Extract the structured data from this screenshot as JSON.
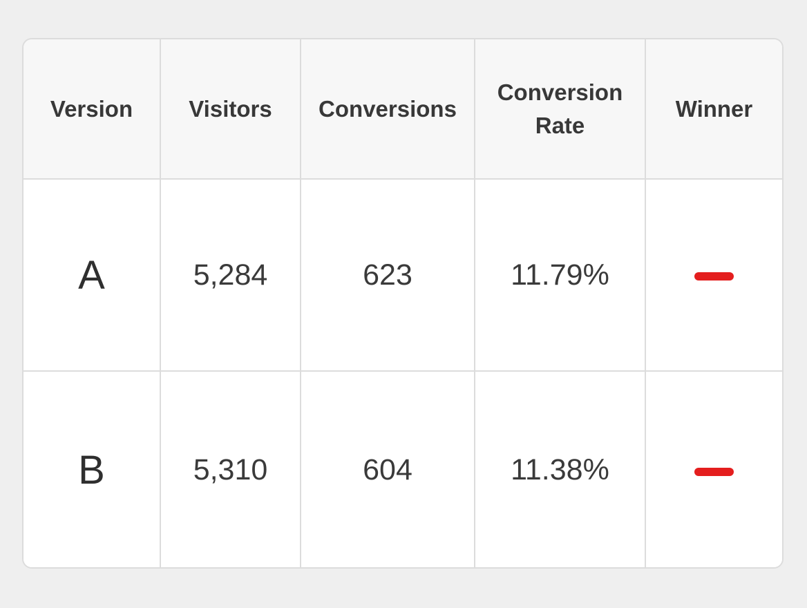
{
  "table": {
    "headers": [
      "Version",
      "Visitors",
      "Conversions",
      "Conversion Rate",
      "Winner"
    ],
    "rows": [
      {
        "version": "A",
        "visitors": "5,284",
        "conversions": "623",
        "rate": "11.79%",
        "winner_icon": "minus-icon"
      },
      {
        "version": "B",
        "visitors": "5,310",
        "conversions": "604",
        "rate": "11.38%",
        "winner_icon": "minus-icon"
      }
    ]
  },
  "colors": {
    "winner_dash": "#e41e1e",
    "header_bg": "#f7f7f7",
    "grid_line": "#dcdcdc",
    "page_bg": "#efefef"
  }
}
